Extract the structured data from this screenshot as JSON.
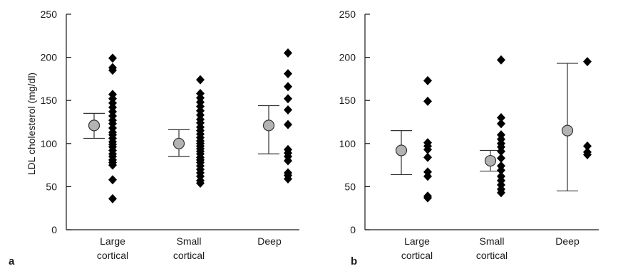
{
  "ylabel": "LDL cholesterol (mg/dl)",
  "colors": {
    "marker": "#000000",
    "mean_fill": "#b3b3b3",
    "mean_stroke": "#333333",
    "axis": "#1a1a1a"
  },
  "chart_data": [
    {
      "panel_label": "a",
      "type": "scatter",
      "ylim": [
        0,
        250
      ],
      "yticks": [
        0,
        50,
        100,
        150,
        200,
        250
      ],
      "categories": [
        {
          "lines": [
            "Large",
            "cortical"
          ]
        },
        {
          "lines": [
            "Small",
            "cortical"
          ]
        },
        {
          "lines": [
            "Deep"
          ]
        }
      ],
      "summary": [
        {
          "mean": 121,
          "lower": 106,
          "upper": 135
        },
        {
          "mean": 100,
          "lower": 85,
          "upper": 116
        },
        {
          "mean": 121,
          "lower": 88,
          "upper": 144
        }
      ],
      "points": [
        [
          199,
          188,
          185,
          157,
          152,
          147,
          142,
          137,
          132,
          127,
          123,
          118,
          113,
          110,
          106,
          102,
          99,
          96,
          92,
          88,
          85,
          81,
          78,
          75,
          58,
          36
        ],
        [
          174,
          158,
          153,
          148,
          143,
          138,
          133,
          128,
          124,
          119,
          115,
          111,
          107,
          103,
          100,
          97,
          94,
          91,
          88,
          84,
          81,
          78,
          74,
          70,
          66,
          62,
          57,
          54
        ],
        [
          205,
          181,
          166,
          152,
          139,
          122,
          93,
          89,
          85,
          80,
          66,
          63,
          59
        ]
      ]
    },
    {
      "panel_label": "b",
      "type": "scatter",
      "ylim": [
        0,
        250
      ],
      "yticks": [
        0,
        50,
        100,
        150,
        200,
        250
      ],
      "categories": [
        {
          "lines": [
            "Large",
            "cortical"
          ]
        },
        {
          "lines": [
            "Small",
            "cortical"
          ]
        },
        {
          "lines": [
            "Deep"
          ]
        }
      ],
      "summary": [
        {
          "mean": 92,
          "lower": 64,
          "upper": 115
        },
        {
          "mean": 80,
          "lower": 68,
          "upper": 92
        },
        {
          "mean": 115,
          "lower": 45,
          "upper": 193
        }
      ],
      "points": [
        [
          173,
          149,
          101,
          97,
          93,
          84,
          67,
          62,
          39,
          37
        ],
        [
          197,
          130,
          123,
          110,
          105,
          100,
          96,
          91,
          83,
          74,
          69,
          62,
          57,
          52,
          47,
          43
        ],
        [
          195,
          97,
          90,
          87
        ]
      ]
    }
  ]
}
